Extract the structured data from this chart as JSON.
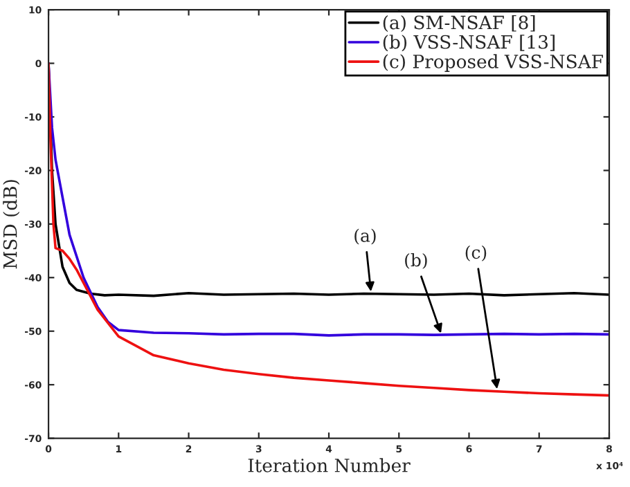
{
  "chart_data": {
    "type": "line",
    "xlabel": "Iteration Number",
    "ylabel": "MSD (dB)",
    "xlim": [
      0,
      8
    ],
    "xticks": [
      0,
      1,
      2,
      3,
      4,
      5,
      6,
      7,
      8
    ],
    "ylim": [
      -70,
      10
    ],
    "yticks": [
      -70,
      -60,
      -50,
      -40,
      -30,
      -20,
      -10,
      0,
      10
    ],
    "grid": false,
    "legend": "top right",
    "marker": "none",
    "line_style": "solid",
    "series": [
      {
        "name": "(a) SM-NSAF [8]",
        "color": "#000000",
        "x": [
          0,
          0.05,
          0.1,
          0.2,
          0.3,
          0.4,
          0.6,
          0.8,
          1,
          1.5,
          2,
          2.5,
          3,
          3.5,
          4,
          4.5,
          5,
          5.5,
          6,
          6.5,
          7,
          7.5,
          8
        ],
        "values": [
          0,
          -20,
          -30,
          -38,
          -41,
          -42.3,
          -43,
          -43.3,
          -43.2,
          -43.4,
          -42.9,
          -43.2,
          -43.1,
          -43,
          -43.2,
          -43,
          -43.1,
          -43.2,
          -43,
          -43.3,
          -43.1,
          -42.9,
          -43.2
        ]
      },
      {
        "name": "(b) VSS-NSAF [13]",
        "color": "#3300dd",
        "x": [
          0,
          0.05,
          0.1,
          0.2,
          0.3,
          0.5,
          0.7,
          0.85,
          1,
          1.5,
          2,
          2.5,
          3,
          3.5,
          4,
          4.5,
          5,
          5.5,
          6,
          6.5,
          7,
          7.5,
          8
        ],
        "values": [
          0,
          -12,
          -18,
          -25,
          -32,
          -40,
          -45.5,
          -48.3,
          -49.8,
          -50.3,
          -50.4,
          -50.6,
          -50.5,
          -50.5,
          -50.8,
          -50.6,
          -50.6,
          -50.7,
          -50.6,
          -50.5,
          -50.6,
          -50.5,
          -50.6
        ]
      },
      {
        "name": "(c) Proposed VSS-NSAF",
        "color": "#ee1111",
        "x": [
          0,
          0.03,
          0.07,
          0.1,
          0.2,
          0.3,
          0.4,
          0.5,
          0.7,
          1,
          1.5,
          2,
          2.5,
          3,
          3.5,
          4,
          4.5,
          5,
          5.5,
          6,
          6.5,
          7,
          7.5,
          8
        ],
        "values": [
          0,
          -15,
          -30,
          -34.5,
          -35,
          -36.5,
          -38.5,
          -41,
          -46,
          -51,
          -54.5,
          -56,
          -57.2,
          -58,
          -58.7,
          -59.2,
          -59.7,
          -60.2,
          -60.6,
          -61,
          -61.3,
          -61.6,
          -61.8,
          -62
        ]
      }
    ],
    "annotations": [
      {
        "text": "(a)",
        "x": 4.6,
        "y": -42.6
      },
      {
        "text": "(b)",
        "x": 5.6,
        "y": -50.4
      },
      {
        "text": "(c)",
        "x": 6.4,
        "y": -60.8
      },
      "x 10⁴"
    ]
  }
}
